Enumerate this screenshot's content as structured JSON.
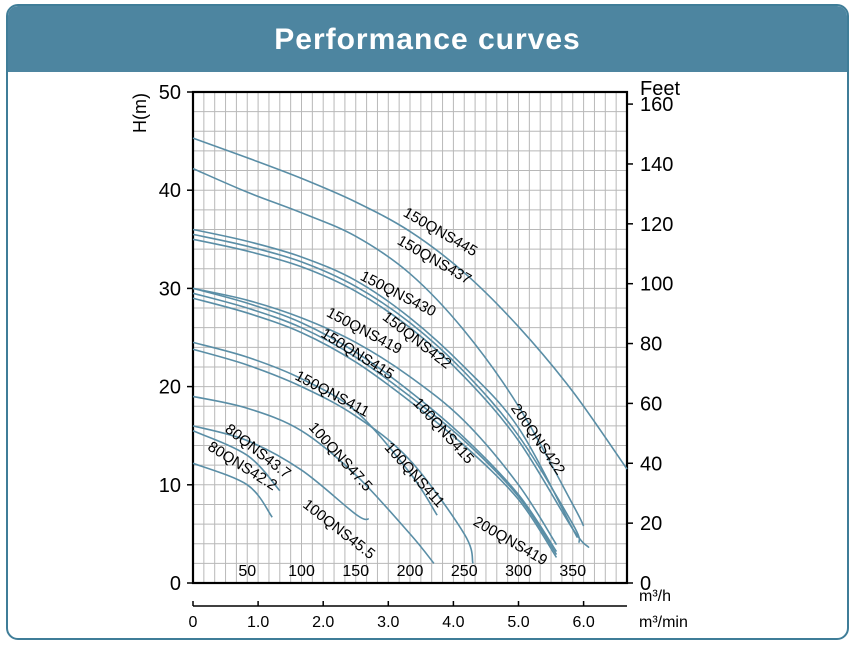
{
  "header": {
    "title": "Performance curves"
  },
  "colors": {
    "header_bg": "#4d85a0",
    "border": "#3f7d98",
    "curve": "#5a8ea6",
    "grid": "#b8b8b8",
    "axis": "#000000"
  },
  "chart_data": {
    "type": "line",
    "title": "Performance curves",
    "ylabel": "H(m)",
    "y2label": "Feet",
    "xlabel_top": "m³/h",
    "xlabel_bottom": "m³/min",
    "ylim": [
      0,
      50
    ],
    "xlim_m3h": [
      0,
      400
    ],
    "y_ticks": [
      0,
      10,
      20,
      30,
      40,
      50
    ],
    "y2_ticks": [
      0,
      20,
      40,
      60,
      80,
      100,
      120,
      140,
      160
    ],
    "x_ticks_m3h": [
      50,
      100,
      150,
      200,
      250,
      300,
      350
    ],
    "x_ticks_m3min": [
      "0",
      "1.0",
      "2.0",
      "3.0",
      "4.0",
      "5.0",
      "6.0"
    ],
    "grid": true,
    "series": [
      {
        "name": "150QNS445",
        "x": [
          0,
          50,
          100,
          150,
          200,
          250,
          300,
          350,
          400
        ],
        "y": [
          45.3,
          43.3,
          41.2,
          38.8,
          35.8,
          31.6,
          26.1,
          19.5,
          11.6
        ]
      },
      {
        "name": "150QNS437",
        "x": [
          0,
          50,
          100,
          150,
          200,
          250,
          300,
          350,
          360
        ],
        "y": [
          42.2,
          39.8,
          37.7,
          35.3,
          31.5,
          25.7,
          18.0,
          8.0,
          5.8
        ]
      },
      {
        "name": "150QNS430",
        "x": [
          0,
          50,
          100,
          150,
          200,
          250,
          300,
          350,
          351
        ],
        "y": [
          36.0,
          34.8,
          33.2,
          30.8,
          27.0,
          22.0,
          15.8,
          5.5,
          5.3
        ]
      },
      {
        "name": "150QNS422",
        "x": [
          0,
          50,
          100,
          150,
          200,
          250,
          300,
          350,
          356
        ],
        "y": [
          35.5,
          34.3,
          32.7,
          30.2,
          26.5,
          21.5,
          15.0,
          6.0,
          4.1
        ]
      },
      {
        "name": "200QNS422",
        "x": [
          0,
          50,
          100,
          150,
          200,
          250,
          300,
          350,
          365
        ],
        "y": [
          35.0,
          33.8,
          32.2,
          29.7,
          26.0,
          21.0,
          14.5,
          5.5,
          3.6
        ]
      },
      {
        "name": "150QNS419",
        "x": [
          0,
          50,
          100,
          150,
          200,
          250,
          300,
          335
        ],
        "y": [
          30.0,
          28.8,
          27.0,
          24.5,
          21.0,
          16.5,
          10.0,
          3.9
        ]
      },
      {
        "name": "150QNS415",
        "x": [
          0,
          50,
          100,
          150,
          200,
          250,
          300,
          335
        ],
        "y": [
          30.0,
          28.5,
          26.5,
          23.5,
          19.5,
          14.8,
          9.0,
          3.2
        ]
      },
      {
        "name": "100QNS415",
        "x": [
          0,
          50,
          100,
          150,
          200,
          250,
          300,
          335
        ],
        "y": [
          29.5,
          28.0,
          26.0,
          23.0,
          19.0,
          14.5,
          8.8,
          2.9
        ]
      },
      {
        "name": "200QNS419",
        "x": [
          0,
          50,
          100,
          150,
          200,
          250,
          300,
          335
        ],
        "y": [
          29.0,
          27.5,
          25.5,
          22.5,
          18.5,
          14.0,
          8.5,
          2.6
        ]
      },
      {
        "name": "150QNS411",
        "x": [
          0,
          50,
          100,
          150,
          200,
          225
        ],
        "y": [
          24.5,
          23.0,
          20.8,
          17.5,
          11.2,
          6.9
        ]
      },
      {
        "name": "100QNS411",
        "x": [
          0,
          50,
          100,
          150,
          200,
          250,
          258
        ],
        "y": [
          23.8,
          22.2,
          20.0,
          17.0,
          12.5,
          5.0,
          2.0
        ]
      },
      {
        "name": "100QNS47.5",
        "x": [
          0,
          50,
          100,
          150,
          200,
          222
        ],
        "y": [
          19.0,
          17.8,
          15.5,
          11.0,
          5.0,
          2.0
        ]
      },
      {
        "name": "100QNS45.5",
        "x": [
          0,
          50,
          100,
          150,
          162
        ],
        "y": [
          16.0,
          14.5,
          11.5,
          7.0,
          6.5
        ]
      },
      {
        "name": "80QNS43.7",
        "x": [
          0,
          50,
          80
        ],
        "y": [
          15.5,
          13.0,
          9.4
        ]
      },
      {
        "name": "80QNS42.2",
        "x": [
          0,
          50,
          73
        ],
        "y": [
          12.2,
          10.0,
          6.7
        ]
      }
    ],
    "labels": [
      {
        "text": "150QNS445",
        "series": "150QNS445"
      },
      {
        "text": "150QNS437",
        "series": "150QNS437"
      },
      {
        "text": "150QNS430",
        "series": "150QNS430"
      },
      {
        "text": "150QNS422",
        "series": "150QNS422"
      },
      {
        "text": "150QNS419",
        "series": "150QNS419"
      },
      {
        "text": "150QNS415",
        "series": "150QNS415"
      },
      {
        "text": "150QNS411",
        "series": "150QNS411"
      },
      {
        "text": "100QNS415",
        "series": "100QNS415"
      },
      {
        "text": "200QNS422",
        "series": "200QNS422"
      },
      {
        "text": "100QNS411",
        "series": "100QNS411"
      },
      {
        "text": "200QNS419",
        "series": "200QNS419"
      },
      {
        "text": "100QNS47.5",
        "series": "100QNS47.5"
      },
      {
        "text": "80QNS43.7",
        "series": "80QNS43.7"
      },
      {
        "text": "80QNS42.2",
        "series": "80QNS42.2"
      },
      {
        "text": "100QNS45.5",
        "series": "100QNS45.5"
      }
    ]
  }
}
